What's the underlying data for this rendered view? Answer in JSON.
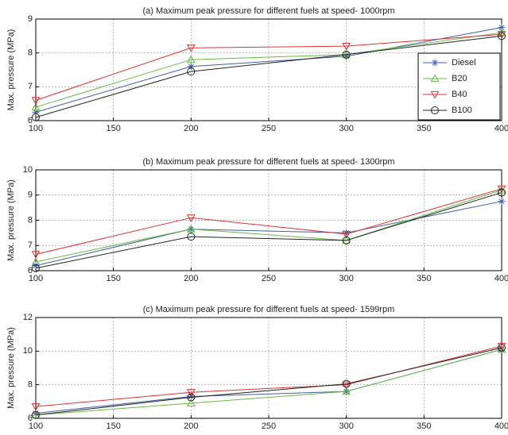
{
  "chart_data": [
    {
      "type": "line",
      "title": "(a) Maximum peak pressure for different fuels at speed- 1000rpm",
      "y_label": "Max. pressure (MPa)",
      "x": [
        100,
        200,
        300,
        400
      ],
      "xlim": [
        100,
        400
      ],
      "xticks": [
        100,
        150,
        200,
        250,
        300,
        350,
        400
      ],
      "ylim": [
        6,
        9
      ],
      "yticks": [
        6,
        7,
        8,
        9
      ],
      "grid": true,
      "legend": "lower right",
      "series": [
        {
          "name": "Diesel",
          "color": "#3f5fa8",
          "marker": "star",
          "values": [
            6.25,
            7.6,
            7.9,
            8.75
          ]
        },
        {
          "name": "B20",
          "color": "#66bb44",
          "marker": "triangle-up",
          "values": [
            6.4,
            7.8,
            7.95,
            8.6
          ]
        },
        {
          "name": "B40",
          "color": "#e03030",
          "marker": "triangle-down",
          "values": [
            6.6,
            8.15,
            8.2,
            8.55
          ]
        },
        {
          "name": "B100",
          "color": "#222222",
          "marker": "circle",
          "values": [
            6.1,
            7.45,
            7.95,
            8.5
          ]
        }
      ]
    },
    {
      "type": "line",
      "title": "(b) Maximum peak pressure for different fuels at speed- 1300rpm",
      "y_label": "Max. pressure (MPa)",
      "x": [
        100,
        200,
        300,
        400
      ],
      "xlim": [
        100,
        400
      ],
      "xticks": [
        100,
        150,
        200,
        250,
        300,
        350,
        400
      ],
      "ylim": [
        6,
        10
      ],
      "yticks": [
        6,
        7,
        8,
        9,
        10
      ],
      "grid": true,
      "series": [
        {
          "color": "#3f5fa8",
          "marker": "star",
          "values": [
            6.2,
            7.65,
            7.5,
            8.75
          ]
        },
        {
          "color": "#66bb44",
          "marker": "triangle-up",
          "values": [
            6.35,
            7.65,
            7.2,
            9.2
          ]
        },
        {
          "color": "#e03030",
          "marker": "triangle-down",
          "values": [
            6.65,
            8.1,
            7.45,
            9.25
          ]
        },
        {
          "color": "#222222",
          "marker": "circle",
          "values": [
            6.1,
            7.35,
            7.2,
            9.1
          ]
        }
      ]
    },
    {
      "type": "line",
      "title": "(c) Maximum peak pressure for different fuels at speed- 1599rpm",
      "y_label": "Max. pressure (MPa)",
      "x": [
        100,
        200,
        300,
        400
      ],
      "xlim": [
        100,
        400
      ],
      "xticks": [
        100,
        150,
        200,
        250,
        300,
        350,
        400
      ],
      "ylim": [
        6,
        12
      ],
      "yticks": [
        6,
        8,
        10,
        12
      ],
      "grid": true,
      "series": [
        {
          "color": "#3f5fa8",
          "marker": "star",
          "values": [
            6.3,
            7.3,
            7.6,
            10.1
          ]
        },
        {
          "color": "#66bb44",
          "marker": "triangle-up",
          "values": [
            6.2,
            6.9,
            7.6,
            10.1
          ]
        },
        {
          "color": "#e03030",
          "marker": "triangle-down",
          "values": [
            6.7,
            7.55,
            8.0,
            10.3
          ]
        },
        {
          "color": "#222222",
          "marker": "circle",
          "values": [
            6.2,
            7.25,
            8.05,
            10.2
          ]
        }
      ]
    }
  ]
}
